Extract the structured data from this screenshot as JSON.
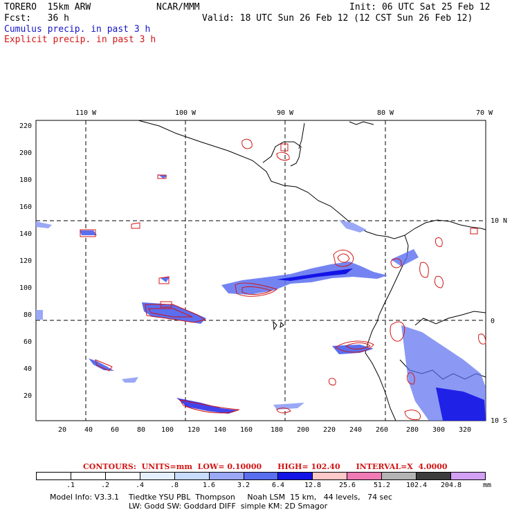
{
  "header": {
    "model": "TORERO  15km ARW",
    "org": "NCAR/MMM",
    "init": "Init: 06 UTC Sat 25 Feb 12",
    "fcst": "Fcst:   36 h",
    "valid": "Valid: 18 UTC Sun 26 Feb 12 (12 CST Sun 26 Feb 12)"
  },
  "legend": {
    "cumulus": "Cumulus precip. in past 3 h",
    "explicit": "Explicit precip. in past 3 h"
  },
  "top_axis": [
    "110 W",
    "100 W",
    "90 W",
    "80 W",
    "70 W"
  ],
  "right_axis": [
    "10 N",
    "0",
    "10 S"
  ],
  "y_ticks": [
    "220",
    "200",
    "180",
    "160",
    "140",
    "120",
    "100",
    "80",
    "60",
    "40",
    "20"
  ],
  "x_ticks": [
    "20",
    "40",
    "60",
    "80",
    "100",
    "120",
    "140",
    "160",
    "180",
    "200",
    "220",
    "240",
    "260",
    "280",
    "300",
    "320"
  ],
  "contours": {
    "label": "CONTOURS:",
    "units": "UNITS=mm",
    "low": "LOW= 0.10000",
    "high": "HIGH= 102.40",
    "interval": "INTERVAL=X  4.0000"
  },
  "colorbar": {
    "labels": [
      ".1",
      ".2",
      ".4",
      ".8",
      "1.6",
      "3.2",
      "6.4",
      "12.8",
      "25.6",
      "51.2",
      "102.4",
      "204.8"
    ],
    "unit": "mm",
    "colors": [
      "#ffffff",
      "#ffffff",
      "#ffffff",
      "#e6f0ff",
      "#c8dcff",
      "#9aa8f5",
      "#5a6ef0",
      "#1414e6",
      "#ffc8c8",
      "#f07ab4",
      "#b4b4b4",
      "#3c3c3c",
      "#d2a0f5"
    ]
  },
  "footer": {
    "line1": "Model Info: V3.3.1    Tiedtke YSU PBL  Thompson     Noah LSM  15 km,   44 levels,   74 sec",
    "line2": "LW: Godd SW: Goddard DIFF  simple KM: 2D Smagor"
  }
}
